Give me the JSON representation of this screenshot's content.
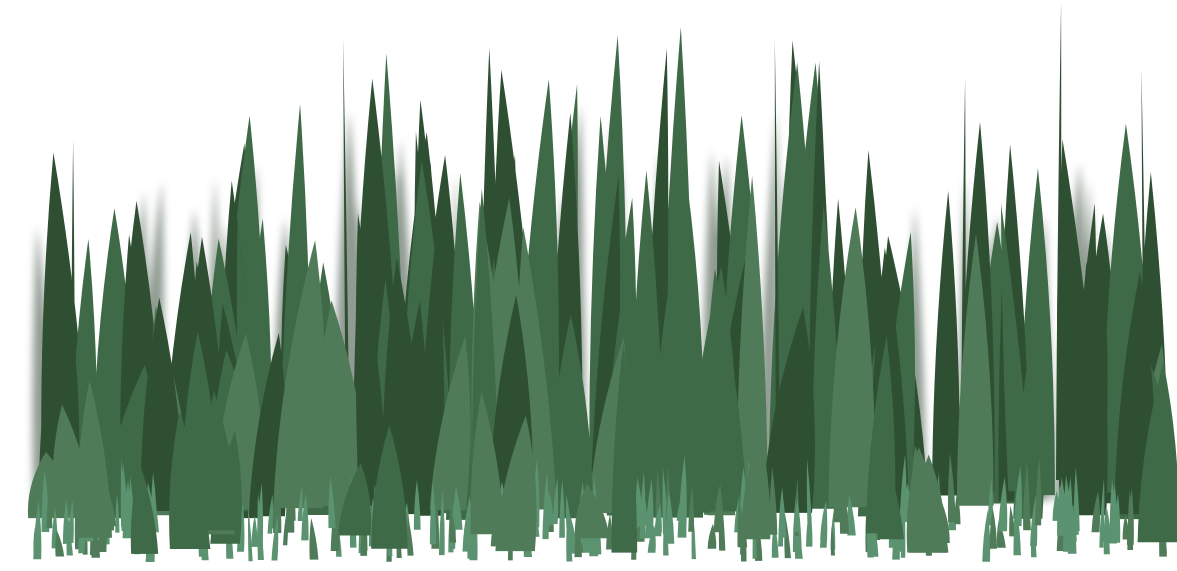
{
  "scene": {
    "subject": "grass-field",
    "background_color": "#ffffff",
    "palette": {
      "blade_dark": "#2f4f33",
      "blade_mid": "#3f6a47",
      "blade_light": "#4f7b58",
      "shadow": "#7d8a7f",
      "stubble": "#5b9270"
    }
  }
}
